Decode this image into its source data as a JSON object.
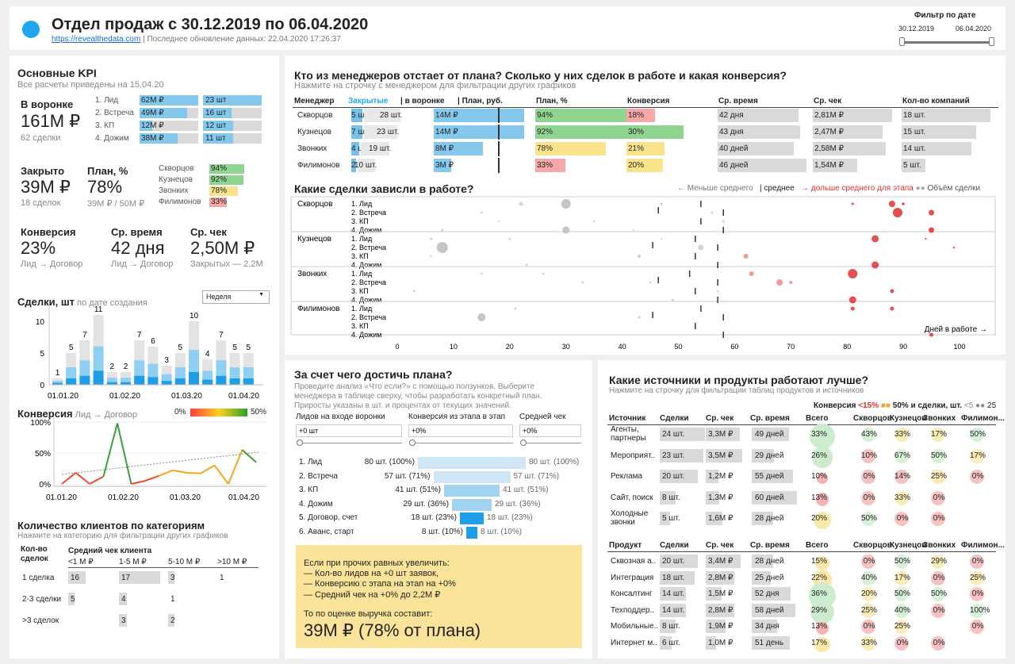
{
  "header": {
    "title": "Отдел продаж с 30.12.2019 по 06.04.2020",
    "link": "https://revealthedata.com",
    "updated": "| Последнее обновление данных: 22.04.2020 17:26:37",
    "filter_label": "Фильтр по дате",
    "date_from": "30.12.2019",
    "date_to": "06.04.2020"
  },
  "kpi": {
    "title": "Основные KPI",
    "subtitle": "Все расчеты приведены на 15.04.20",
    "funnel_label": "В воронке",
    "funnel_value": "161M ₽",
    "funnel_sub": "62 сделки",
    "stages": [
      {
        "name": "1. Лид",
        "amount": "62M ₽",
        "count": "23 шт"
      },
      {
        "name": "2. Встреча",
        "amount": "49M ₽",
        "count": "16 шт"
      },
      {
        "name": "3. КП",
        "amount": "12M ₽",
        "count": "12 шт"
      },
      {
        "name": "4. Дожим",
        "amount": "38M ₽",
        "count": "11 шт"
      }
    ],
    "closed_label": "Закрыто",
    "closed_value": "39M ₽",
    "closed_sub": "18 сделок",
    "plan_label": "План, %",
    "plan_value": "78%",
    "plan_sub": "39M ₽ / 50M ₽",
    "managers": [
      {
        "name": "Скворцов",
        "pct": "94%"
      },
      {
        "name": "Кузнецов",
        "pct": "92%"
      },
      {
        "name": "Звонких",
        "pct": "78%"
      },
      {
        "name": "Филимонов",
        "pct": "33%"
      }
    ],
    "conv_label": "Конверсия",
    "conv_value": "23%",
    "conv_sub": "Лид → Договор",
    "time_label": "Ср. время",
    "time_value": "42 дня",
    "time_sub": "Лид → Договор",
    "check_label": "Ср. чек",
    "check_value": "2,50M ₽",
    "check_sub": "Закрытых — 2,2M"
  },
  "deals_chart": {
    "title": "Сделки, шт",
    "sub": "по дате создания",
    "period": "Неделя",
    "yticks": [
      "10",
      "5",
      "0"
    ],
    "xticks": [
      "01.01.20",
      "01.02.20",
      "01.03.20",
      "01.04.20"
    ],
    "values": [
      1,
      5,
      7,
      11,
      2,
      2,
      7,
      6,
      3,
      5,
      10,
      4,
      7,
      5,
      5
    ]
  },
  "conv_chart": {
    "title": "Конверсия",
    "sub": "Лид → Договор",
    "scale_min": "0%",
    "scale_max": "50%",
    "yticks": [
      "100%",
      "50%",
      "0%"
    ],
    "xticks": [
      "01.01.20",
      "01.02.20",
      "01.03.20",
      "01.04.20"
    ]
  },
  "clients": {
    "title": "Количество клиентов по категориям",
    "sub": "Нажмите на категорию для фильтрации других графиков",
    "col0": "Кол-во сделок",
    "head": "Средний чек клиента",
    "cols": [
      "<1 М ₽",
      "1-5 М ₽",
      "5-10 М ₽",
      ">10 М ₽"
    ],
    "rows": [
      {
        "name": "1 сделка",
        "vals": [
          "16",
          "17",
          "3",
          "1"
        ]
      },
      {
        "name": "2-3 сделки",
        "vals": [
          "5",
          "4",
          "1",
          ""
        ]
      },
      {
        "name": ">3 сделок",
        "vals": [
          "",
          "3",
          "2",
          ""
        ]
      }
    ]
  },
  "managers_table": {
    "title": "Кто из менеджеров отстает от плана? Сколько у них сделок в работе и какая конверсия?",
    "sub": "Нажмите на строчку с менеджером для фильтрации других графиков",
    "headers": [
      "Менеджер",
      "Закрытые",
      "| в воронке",
      "| План,  руб.",
      "План, %",
      "Конверсия",
      "Ср. время",
      "Ср. чек",
      "Кол-во компаний"
    ],
    "rows": [
      {
        "name": "Скворцов",
        "closed": "5 шт.",
        "funnel": "28 шт.",
        "plan": "14M ₽",
        "pct": "94%",
        "conv": "18%",
        "time": "42 дня",
        "check": "2,81M ₽",
        "companies": "18 шт."
      },
      {
        "name": "Кузнецов",
        "closed": "7 шт.",
        "funnel": "23 шт.",
        "plan": "14M ₽",
        "pct": "92%",
        "conv": "30%",
        "time": "43 дня",
        "check": "2,47M ₽",
        "companies": "15 шт."
      },
      {
        "name": "Звонких",
        "closed": "4 шт.",
        "funnel": "19 шт.",
        "plan": "8M ₽",
        "pct": "78%",
        "conv": "21%",
        "time": "40 дней",
        "check": "2,58M ₽",
        "companies": "14 шт."
      },
      {
        "name": "Филимонов",
        "closed": "2 шт.",
        "funnel": "10 шт.",
        "plan": "3M ₽",
        "pct": "33%",
        "conv": "20%",
        "time": "46 дней",
        "check": "1,54M ₽",
        "companies": "5 шт."
      }
    ]
  },
  "stuck": {
    "title": "Какие сделки зависли в работе?",
    "legend_less": "← Меньше среднего",
    "legend_avg": "| среднее",
    "legend_more": "→ дольше среднего для этапа",
    "legend_size": "Объём сделки",
    "axis_label": "Дней в работе →",
    "managers": [
      "Скворцов",
      "Кузнецов",
      "Звонких",
      "Филимонов"
    ],
    "stages": [
      "1. Лид",
      "2. Встреча",
      "3. КП",
      "4. Дожим"
    ],
    "xticks": [
      "0",
      "10",
      "20",
      "30",
      "40",
      "50",
      "60",
      "70",
      "80",
      "90",
      "100"
    ]
  },
  "whatif": {
    "title": "За счет чего достичь плана?",
    "desc1": "Проведите анализ «Что если?» с помощью ползунков. Выберите",
    "desc2": "менеджера в таблице сверху, чтобы разработать конкретный план.",
    "desc3": "Приросты указаны в шт. и процентах от текущих значений.",
    "s1_label": "Лидов на входе воронки",
    "s1_val": "+0 шт",
    "s2_label": "Конверсия из этапа в этап",
    "s2_val": "+0%",
    "s3_label": "Средней чек",
    "s3_val": "+0%",
    "funnel": [
      {
        "name": "1. Лид",
        "l": "80 шт. (100%)",
        "r": "80 шт. (100%)"
      },
      {
        "name": "2. Встреча",
        "l": "57 шт. (71%)",
        "r": "57 шт. (71%)"
      },
      {
        "name": "3. КП",
        "l": "41 шт. (51%)",
        "r": "41 шт. (51%)"
      },
      {
        "name": "4. Дожим",
        "l": "29 шт. (36%)",
        "r": "29 шт. (36%)"
      },
      {
        "name": "5. Договор, счет",
        "l": "18 шт. (23%)",
        "r": "18 шт. (23%)"
      },
      {
        "name": "6. Аванс, старт",
        "l": "8 шт. (10%)",
        "r": "8 шт. (10%)"
      }
    ],
    "box1": "Если при прочих равных увеличить:",
    "box2": "— Кол-во лидов на +0 шт заявок,",
    "box3": "— Конверсию с этапа на этап на +0%",
    "box4": "— Средний чек на +0% до 2,2M ₽",
    "box5": "То по оценке выручка составит:",
    "box_result": "39M ₽ (78% от плана)"
  },
  "sources": {
    "title": "Какие источники и продукты работают лучше?",
    "sub": "Нажмите на строчку для фильтрации таблиц продуктов и источников",
    "legend": "Конверсия",
    "legend_lt": "<15%",
    "legend_mid": "50% и сделки, шт.",
    "legend_s": "<5",
    "legend_b": "25",
    "headers": [
      "Источник",
      "Сделки",
      "Ср. чек",
      "Ср. время",
      "Всего",
      "Скворцов",
      "Кузнецов",
      "Звонких",
      "Филимон..."
    ],
    "rows": [
      {
        "name": "Агенты, партнеры",
        "deals": "24 шт.",
        "check": "3,3M ₽",
        "time": "49 дней",
        "total": "33%",
        "m": [
          "43%",
          "33%",
          "17%",
          "50%"
        ]
      },
      {
        "name": "Мероприят..",
        "deals": "23 шт.",
        "check": "3,5M ₽",
        "time": "29 дней",
        "total": "26%",
        "m": [
          "10%",
          "67%",
          "50%",
          "17%"
        ]
      },
      {
        "name": "Реклама",
        "deals": "20 шт.",
        "check": "1,2M ₽",
        "time": "55 дней",
        "total": "10%",
        "m": [
          "0%",
          "14%",
          "25%",
          "0%"
        ]
      },
      {
        "name": "Сайт, поиск",
        "deals": "8 шт.",
        "check": "1,3M ₽",
        "time": "60 дней",
        "total": "13%",
        "m": [
          "0%",
          "33%",
          "0%",
          ""
        ]
      },
      {
        "name": "Холодные звонки",
        "deals": "5 шт.",
        "check": "1,6M ₽",
        "time": "28 дней",
        "total": "20%",
        "m": [
          "50%",
          "0%",
          "0%",
          ""
        ]
      }
    ],
    "pheaders": [
      "Продукт",
      "Сделки",
      "Ср. чек",
      "Ср. время",
      "Всего",
      "Скворцов",
      "Кузнецов",
      "Звонких",
      "Филимон..."
    ],
    "prows": [
      {
        "name": "Сквозная а..",
        "deals": "20 шт.",
        "check": "3,4M ₽",
        "time": "28 дней",
        "total": "15%",
        "m": [
          "0%",
          "50%",
          "29%",
          "0%"
        ]
      },
      {
        "name": "Интеграция",
        "deals": "18 шт.",
        "check": "2,8M ₽",
        "time": "25 дней",
        "total": "22%",
        "m": [
          "40%",
          "17%",
          "0%",
          "25%"
        ]
      },
      {
        "name": "Консалтинг",
        "deals": "14 шт.",
        "check": "1,5M ₽",
        "time": "52 дня",
        "total": "36%",
        "m": [
          "20%",
          "50%",
          "50%",
          "0%"
        ]
      },
      {
        "name": "Техподдер..",
        "deals": "14 шт.",
        "check": "2,8M ₽",
        "time": "58 дней",
        "total": "29%",
        "m": [
          "25%",
          "40%",
          "0%",
          "100%"
        ]
      },
      {
        "name": "Мобильные..",
        "deals": "8 шт.",
        "check": "1,9M ₽",
        "time": "34 дня",
        "total": "13%",
        "m": [
          "0%",
          "25%",
          "",
          "0%"
        ]
      },
      {
        "name": "Интернет м..",
        "deals": "6 шт.",
        "check": "1,0M ₽",
        "time": "51 день",
        "total": "17%",
        "m": [
          "33%",
          "0%",
          "0%",
          ""
        ]
      }
    ]
  }
}
